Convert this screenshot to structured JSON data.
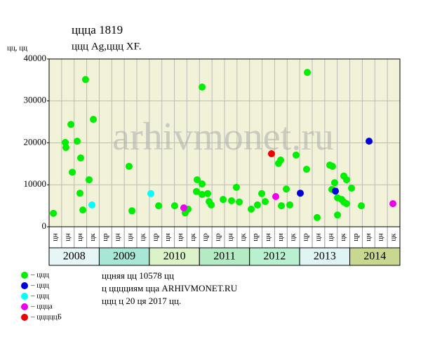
{
  "chart_data": {
    "type": "scatter",
    "title": "ццца 1819",
    "subtitle": "ццц Ag,ццц XF.",
    "y_label": "цц, цц",
    "watermark": "arhivmonet.ru",
    "ylim": [
      0,
      40000
    ],
    "yticks": [
      0,
      10000,
      20000,
      30000,
      40000
    ],
    "xlim": [
      0,
      28
    ],
    "column_labels": [
      "цн",
      "цн",
      "цн",
      "цк",
      "цр",
      "цн",
      "цн",
      "цк",
      "цр",
      "цн",
      "цн",
      "цк",
      "цр",
      "цр",
      "цн",
      "цк",
      "цр",
      "цн",
      "цн",
      "цк",
      "цр",
      "цн",
      "цн",
      "цк",
      "цр",
      "цн",
      "цн",
      "цк"
    ],
    "years": [
      "2008",
      "2009",
      "2010",
      "2011",
      "2012",
      "2013",
      "2014"
    ],
    "year_colors": [
      "#e6f6f6",
      "#a8e6d6",
      "#dcf2c8",
      "#b4eac4",
      "#b8f0d0",
      "#e0f4f4",
      "#c8d890"
    ],
    "grid": true,
    "series": [
      {
        "name": "– ццц",
        "color": "#00ee00",
        "x": [
          0.34,
          1.29,
          1.34,
          1.74,
          1.85,
          2.24,
          2.52,
          2.46,
          2.69,
          2.91,
          3.19,
          3.53,
          6.38,
          6.61,
          8.74,
          10.02,
          10.86,
          11.09,
          11.76,
          11.82,
          12.21,
          12.21,
          12.21,
          12.66,
          12.77,
          12.94,
          13.89,
          14.56,
          14.95,
          15.18,
          16.13,
          16.63,
          16.97,
          17.25,
          18.31,
          18.48,
          18.54,
          18.93,
          19.21,
          19.71,
          20.55,
          20.61,
          21.39,
          22.4,
          22.62,
          22.57,
          22.79,
          23.02,
          23.02,
          23.35,
          23.52,
          23.74,
          23.52,
          23.74,
          24.14,
          24.92
        ],
        "values": [
          3200,
          20100,
          18900,
          24400,
          13000,
          20400,
          16400,
          8000,
          4000,
          35100,
          11200,
          25600,
          14400,
          3800,
          5000,
          5000,
          3300,
          4200,
          8400,
          11200,
          33300,
          10200,
          7700,
          7900,
          6000,
          5200,
          6500,
          6200,
          9400,
          5900,
          4200,
          5200,
          7900,
          6000,
          15100,
          15900,
          5000,
          9000,
          5200,
          17100,
          13700,
          36800,
          2200,
          14700,
          14400,
          8900,
          10500,
          2800,
          6900,
          6500,
          12100,
          11200,
          5900,
          5500,
          9200,
          5000
        ]
      },
      {
        "name": "– ццц",
        "color": "#0000dd",
        "x": [
          20.05,
          22.85,
          25.54
        ],
        "values": [
          8000,
          8500,
          20400
        ]
      },
      {
        "name": "– ццц",
        "color": "#00ffff",
        "x": [
          3.42,
          8.12
        ],
        "values": [
          5200,
          7900
        ]
      },
      {
        "name": "– ццца",
        "color": "#ee00ee",
        "x": [
          10.75,
          18.09,
          27.44
        ],
        "values": [
          4500,
          7200,
          5500
        ]
      },
      {
        "name": "– цццццБ",
        "color": "#ee0000",
        "x": [
          17.75
        ],
        "values": [
          17400
        ]
      }
    ],
    "notes": [
      "ццняя цц 10578 цц",
      "ц цццциям цца ARHIVMONET.RU",
      "ццц ц 20 ця 2017 цц."
    ]
  }
}
